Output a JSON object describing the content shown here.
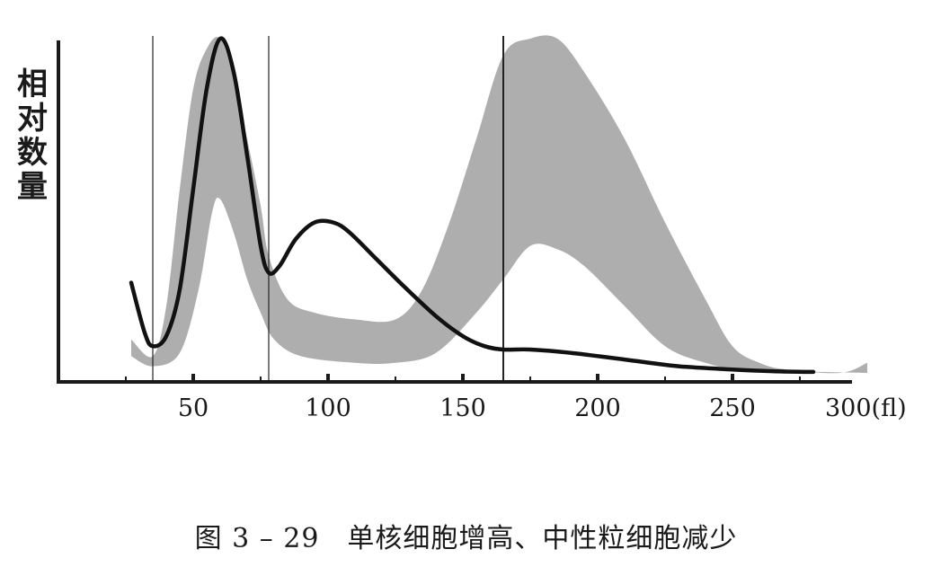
{
  "chart_data": {
    "type": "area",
    "x_unit_label": "300(fl)",
    "ylabel": "相对数量",
    "xlim": [
      25,
      300
    ],
    "ylim": [
      0,
      100
    ],
    "xticks": [
      {
        "value": 50,
        "label": "50"
      },
      {
        "value": 100,
        "label": "100"
      },
      {
        "value": 150,
        "label": "150"
      },
      {
        "value": 200,
        "label": "200"
      },
      {
        "value": 250,
        "label": "250"
      },
      {
        "value": 300,
        "label": "300(fl)"
      }
    ],
    "minor_ticks": [
      25,
      50,
      75,
      100,
      125,
      150,
      175,
      200,
      225,
      250,
      275
    ],
    "vertical_lines": [
      {
        "x": 35,
        "weight": "thin"
      },
      {
        "x": 78,
        "weight": "thin"
      },
      {
        "x": 165,
        "weight": "medium"
      }
    ],
    "reference_band": {
      "upper": [
        [
          27,
          10
        ],
        [
          35,
          5
        ],
        [
          40,
          20
        ],
        [
          45,
          55
        ],
        [
          50,
          85
        ],
        [
          55,
          97
        ],
        [
          60,
          100
        ],
        [
          65,
          88
        ],
        [
          70,
          70
        ],
        [
          75,
          50
        ],
        [
          78,
          35
        ],
        [
          85,
          22
        ],
        [
          95,
          18
        ],
        [
          110,
          16
        ],
        [
          125,
          16
        ],
        [
          135,
          25
        ],
        [
          145,
          45
        ],
        [
          155,
          70
        ],
        [
          165,
          95
        ],
        [
          175,
          100
        ],
        [
          185,
          100
        ],
        [
          195,
          90
        ],
        [
          210,
          70
        ],
        [
          225,
          45
        ],
        [
          240,
          22
        ],
        [
          250,
          8
        ],
        [
          260,
          3
        ],
        [
          270,
          1
        ],
        [
          290,
          0
        ],
        [
          300,
          3
        ]
      ],
      "lower": [
        [
          27,
          5
        ],
        [
          35,
          2
        ],
        [
          45,
          6
        ],
        [
          52,
          25
        ],
        [
          57,
          48
        ],
        [
          60,
          52
        ],
        [
          65,
          42
        ],
        [
          70,
          28
        ],
        [
          75,
          18
        ],
        [
          80,
          10
        ],
        [
          90,
          5
        ],
        [
          110,
          3
        ],
        [
          125,
          3
        ],
        [
          140,
          6
        ],
        [
          155,
          18
        ],
        [
          165,
          28
        ],
        [
          175,
          38
        ],
        [
          185,
          37
        ],
        [
          195,
          32
        ],
        [
          210,
          20
        ],
        [
          225,
          8
        ],
        [
          240,
          3
        ],
        [
          255,
          1
        ],
        [
          300,
          0
        ]
      ]
    },
    "series": [
      {
        "values": [
          [
            27,
            27
          ],
          [
            32,
            12
          ],
          [
            35,
            8
          ],
          [
            40,
            11
          ],
          [
            45,
            25
          ],
          [
            50,
            55
          ],
          [
            55,
            85
          ],
          [
            60,
            100
          ],
          [
            65,
            90
          ],
          [
            70,
            65
          ],
          [
            75,
            38
          ],
          [
            78,
            30
          ],
          [
            82,
            32
          ],
          [
            88,
            40
          ],
          [
            95,
            45
          ],
          [
            102,
            45
          ],
          [
            108,
            42
          ],
          [
            118,
            34
          ],
          [
            128,
            26
          ],
          [
            140,
            17
          ],
          [
            150,
            11
          ],
          [
            158,
            8
          ],
          [
            165,
            7
          ],
          [
            175,
            7
          ],
          [
            190,
            6
          ],
          [
            210,
            4
          ],
          [
            230,
            2
          ],
          [
            250,
            1
          ],
          [
            265,
            0.5
          ],
          [
            280,
            0.3
          ]
        ]
      }
    ]
  },
  "caption": "图 3 – 29　单核细胞增高、中性粒细胞减少",
  "colors": {
    "band": "#aaaaaa",
    "curve": "#111111",
    "axis": "#1a1a1a"
  }
}
